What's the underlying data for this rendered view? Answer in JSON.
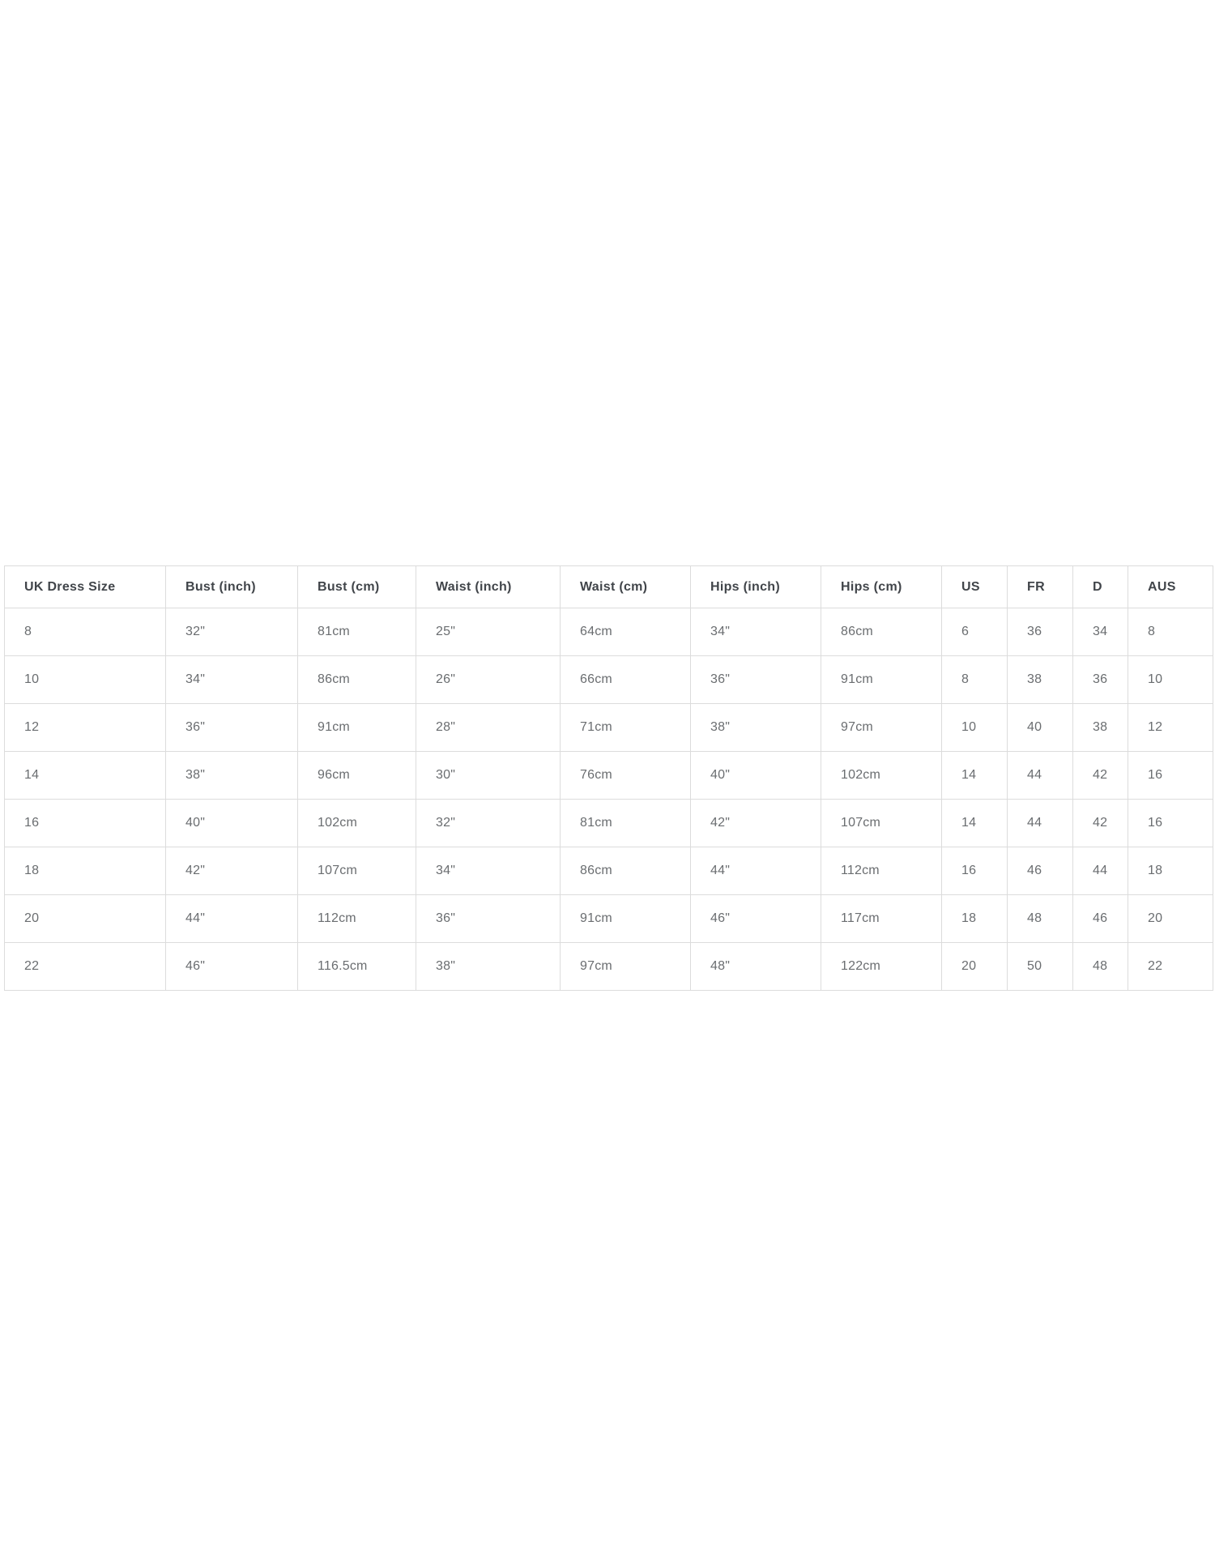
{
  "colors": {
    "background": "#ffffff",
    "border": "#dcdcdc",
    "header_text": "#41454a",
    "body_text": "#6a6d70"
  },
  "chart_data": {
    "type": "table",
    "columns": [
      "UK Dress Size",
      "Bust (inch)",
      "Bust (cm)",
      "Waist (inch)",
      "Waist (cm)",
      "Hips (inch)",
      "Hips (cm)",
      "US",
      "FR",
      "D",
      "AUS"
    ],
    "rows": [
      [
        "8",
        "32\"",
        "81cm",
        "25\"",
        "64cm",
        "34\"",
        "86cm",
        "6",
        "36",
        "34",
        "8"
      ],
      [
        "10",
        "34\"",
        "86cm",
        "26\"",
        "66cm",
        "36\"",
        "91cm",
        "8",
        "38",
        "36",
        "10"
      ],
      [
        "12",
        "36\"",
        "91cm",
        "28\"",
        "71cm",
        "38\"",
        "97cm",
        "10",
        "40",
        "38",
        "12"
      ],
      [
        "14",
        "38\"",
        "96cm",
        "30\"",
        "76cm",
        "40\"",
        "102cm",
        "14",
        "44",
        "42",
        "16"
      ],
      [
        "16",
        "40\"",
        "102cm",
        "32\"",
        "81cm",
        "42\"",
        "107cm",
        "14",
        "44",
        "42",
        "16"
      ],
      [
        "18",
        "42\"",
        "107cm",
        "34\"",
        "86cm",
        "44\"",
        "112cm",
        "16",
        "46",
        "44",
        "18"
      ],
      [
        "20",
        "44\"",
        "112cm",
        "36\"",
        "91cm",
        "46\"",
        "117cm",
        "18",
        "48",
        "46",
        "20"
      ],
      [
        "22",
        "46\"",
        "116.5cm",
        "38\"",
        "97cm",
        "48\"",
        "122cm",
        "20",
        "50",
        "48",
        "22"
      ]
    ]
  }
}
